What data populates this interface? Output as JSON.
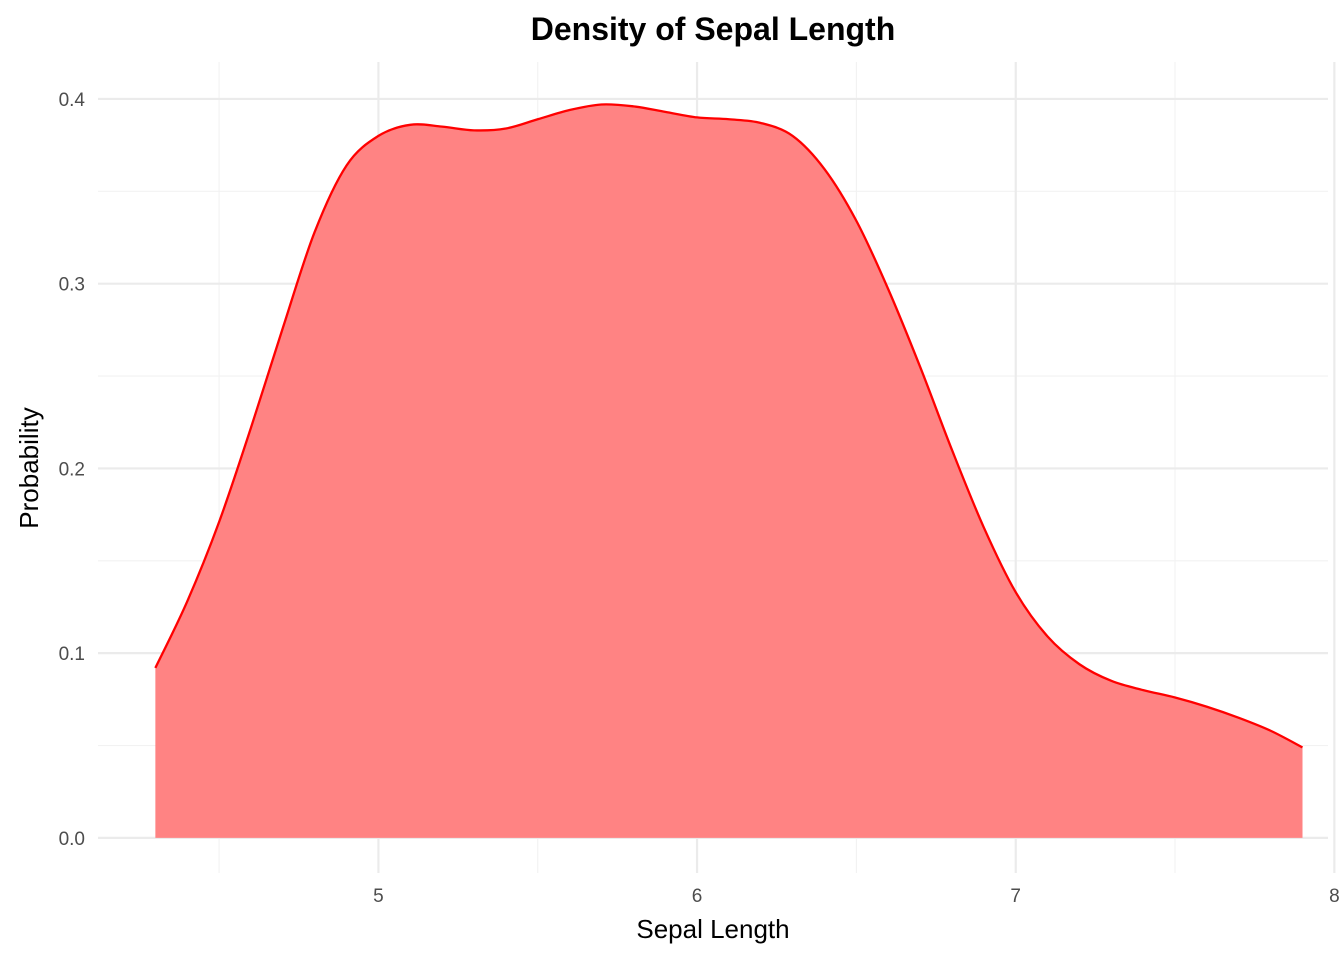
{
  "chart_data": {
    "type": "area",
    "title": "Density of Sepal Length",
    "xlabel": "Sepal Length",
    "ylabel": "Probability",
    "xlim": [
      4.12,
      7.98
    ],
    "ylim": [
      -0.019,
      0.42
    ],
    "x_ticks": [
      5,
      6,
      7,
      8
    ],
    "x_tick_labels": [
      "5",
      "6",
      "7",
      "8"
    ],
    "x_minor_ticks": [
      4.5,
      5.5,
      6.5,
      7.5
    ],
    "y_ticks": [
      0.0,
      0.1,
      0.2,
      0.3,
      0.4
    ],
    "y_tick_labels": [
      "0.0",
      "0.1",
      "0.2",
      "0.3",
      "0.4"
    ],
    "y_minor_ticks": [
      0.05,
      0.15,
      0.25,
      0.35
    ],
    "grid": true,
    "legend": "none",
    "series": [
      {
        "fill_color": "#ff7f7f",
        "line_color": "#ff0000",
        "x": [
          4.3,
          4.4,
          4.5,
          4.6,
          4.7,
          4.8,
          4.9,
          5.0,
          5.1,
          5.2,
          5.3,
          5.4,
          5.5,
          5.6,
          5.7,
          5.8,
          5.9,
          6.0,
          6.1,
          6.2,
          6.3,
          6.4,
          6.5,
          6.6,
          6.7,
          6.8,
          6.9,
          7.0,
          7.1,
          7.2,
          7.3,
          7.4,
          7.5,
          7.6,
          7.7,
          7.8,
          7.9
        ],
        "y": [
          0.092,
          0.128,
          0.171,
          0.222,
          0.276,
          0.328,
          0.364,
          0.38,
          0.386,
          0.385,
          0.383,
          0.384,
          0.389,
          0.394,
          0.397,
          0.396,
          0.393,
          0.39,
          0.389,
          0.387,
          0.38,
          0.362,
          0.334,
          0.297,
          0.255,
          0.21,
          0.168,
          0.133,
          0.109,
          0.094,
          0.085,
          0.08,
          0.076,
          0.071,
          0.065,
          0.058,
          0.049
        ]
      }
    ]
  }
}
